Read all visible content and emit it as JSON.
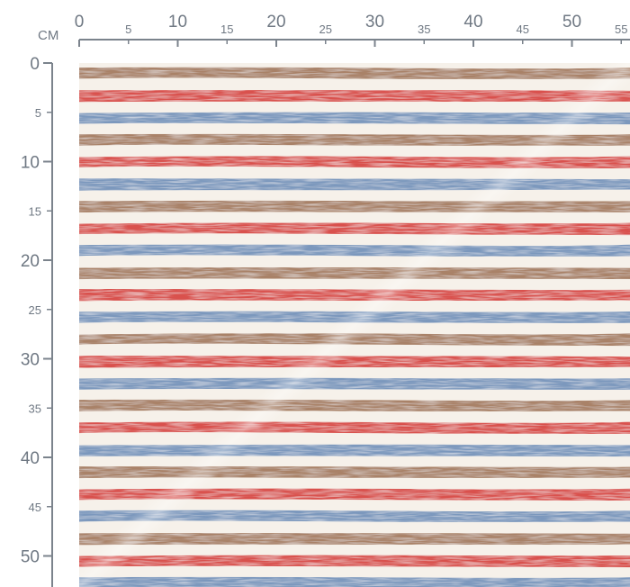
{
  "ruler": {
    "unit_label": "CM",
    "top_ticks": [
      {
        "value": 0,
        "label": "0",
        "major": true
      },
      {
        "value": 5,
        "label": "5",
        "major": false
      },
      {
        "value": 10,
        "label": "10",
        "major": true
      },
      {
        "value": 15,
        "label": "15",
        "major": false
      },
      {
        "value": 20,
        "label": "20",
        "major": true
      },
      {
        "value": 25,
        "label": "25",
        "major": false
      },
      {
        "value": 30,
        "label": "30",
        "major": true
      },
      {
        "value": 35,
        "label": "35",
        "major": false
      },
      {
        "value": 40,
        "label": "40",
        "major": true
      },
      {
        "value": 45,
        "label": "45",
        "major": false
      },
      {
        "value": 50,
        "label": "50",
        "major": true
      },
      {
        "value": 55,
        "label": "55",
        "major": false
      }
    ],
    "left_ticks": [
      {
        "value": 0,
        "label": "0",
        "major": true
      },
      {
        "value": 5,
        "label": "5",
        "major": false
      },
      {
        "value": 10,
        "label": "10",
        "major": true
      },
      {
        "value": 15,
        "label": "15",
        "major": false
      },
      {
        "value": 20,
        "label": "20",
        "major": true
      },
      {
        "value": 25,
        "label": "25",
        "major": false
      },
      {
        "value": 30,
        "label": "30",
        "major": true
      },
      {
        "value": 35,
        "label": "35",
        "major": false
      },
      {
        "value": 40,
        "label": "40",
        "major": true
      },
      {
        "value": 45,
        "label": "45",
        "major": false
      },
      {
        "value": 50,
        "label": "50",
        "major": true
      }
    ]
  },
  "fabric": {
    "background_color": "#f6f1ea",
    "stripe_sequence": [
      "brown",
      "red",
      "blue"
    ],
    "colors": {
      "brown": "#a98268",
      "red": "#d9514d",
      "blue": "#7b98bd"
    }
  }
}
